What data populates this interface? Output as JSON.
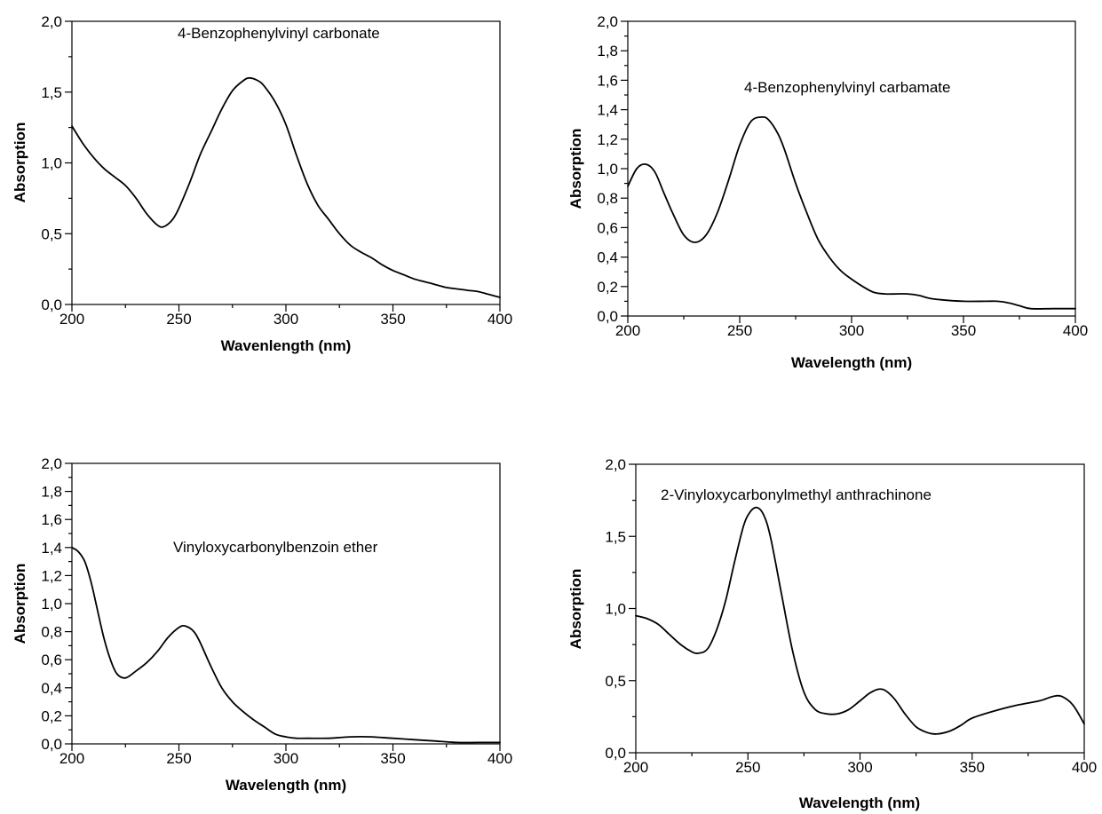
{
  "chart_data": [
    {
      "type": "line",
      "title": "",
      "annotation": "4-Benzophenylvinyl carbonate",
      "xlabel": "Wavenlength (nm)",
      "ylabel": "Absorption",
      "xlim": [
        200,
        400
      ],
      "ylim": [
        0,
        2
      ],
      "x_ticks": [
        "200",
        "250",
        "300",
        "350",
        "400"
      ],
      "y_ticks": [
        "0,0",
        "0,5",
        "1,0",
        "1,5",
        "2,0"
      ],
      "series": [
        {
          "x": [
            200,
            205,
            210,
            215,
            220,
            225,
            230,
            235,
            240,
            243,
            247,
            250,
            255,
            260,
            265,
            270,
            275,
            280,
            283,
            287,
            290,
            295,
            300,
            305,
            310,
            315,
            320,
            325,
            330,
            335,
            340,
            345,
            350,
            355,
            360,
            365,
            370,
            375,
            380,
            385,
            390,
            395,
            400
          ],
          "y": [
            1.26,
            1.14,
            1.04,
            0.96,
            0.9,
            0.84,
            0.75,
            0.64,
            0.56,
            0.55,
            0.6,
            0.68,
            0.86,
            1.06,
            1.22,
            1.38,
            1.51,
            1.58,
            1.6,
            1.58,
            1.54,
            1.43,
            1.27,
            1.05,
            0.85,
            0.7,
            0.6,
            0.5,
            0.42,
            0.37,
            0.33,
            0.28,
            0.24,
            0.21,
            0.18,
            0.16,
            0.14,
            0.12,
            0.11,
            0.1,
            0.09,
            0.07,
            0.05
          ]
        }
      ]
    },
    {
      "type": "line",
      "title": "",
      "annotation": "4-Benzophenylvinyl carbamate",
      "xlabel": "Wavelength (nm)",
      "ylabel": "Absorption",
      "xlim": [
        200,
        400
      ],
      "ylim": [
        0,
        2
      ],
      "x_ticks": [
        "200",
        "250",
        "300",
        "350",
        "400"
      ],
      "y_ticks": [
        "0,0",
        "0,2",
        "0,4",
        "0,6",
        "0,8",
        "1,0",
        "1,2",
        "1,4",
        "1,6",
        "1,8",
        "2,0"
      ],
      "series": [
        {
          "x": [
            200,
            204,
            208,
            212,
            216,
            220,
            225,
            230,
            235,
            240,
            245,
            250,
            255,
            260,
            263,
            267,
            270,
            275,
            280,
            285,
            290,
            295,
            300,
            305,
            310,
            315,
            320,
            325,
            330,
            335,
            340,
            350,
            360,
            365,
            370,
            375,
            380,
            390,
            400
          ],
          "y": [
            0.88,
            1.0,
            1.03,
            0.98,
            0.84,
            0.7,
            0.55,
            0.5,
            0.55,
            0.7,
            0.92,
            1.16,
            1.32,
            1.35,
            1.33,
            1.24,
            1.13,
            0.9,
            0.7,
            0.52,
            0.4,
            0.31,
            0.25,
            0.2,
            0.16,
            0.15,
            0.15,
            0.15,
            0.14,
            0.12,
            0.11,
            0.1,
            0.1,
            0.1,
            0.09,
            0.07,
            0.05,
            0.05,
            0.05
          ]
        }
      ]
    },
    {
      "type": "line",
      "title": "",
      "annotation": "Vinyloxycarbonylbenzoin ether",
      "xlabel": "Wavelength (nm)",
      "ylabel": "Absorption",
      "xlim": [
        200,
        400
      ],
      "ylim": [
        0,
        2
      ],
      "x_ticks": [
        "200",
        "250",
        "300",
        "350",
        "400"
      ],
      "y_ticks": [
        "0,0",
        "0,2",
        "0,4",
        "0,6",
        "0,8",
        "1,0",
        "1,2",
        "1,4",
        "1,6",
        "1,8",
        "2,0"
      ],
      "series": [
        {
          "x": [
            200,
            203,
            206,
            209,
            212,
            215,
            218,
            221,
            225,
            230,
            235,
            240,
            245,
            250,
            253,
            257,
            260,
            265,
            270,
            275,
            280,
            285,
            290,
            295,
            300,
            305,
            310,
            320,
            330,
            340,
            350,
            360,
            370,
            380,
            390,
            400
          ],
          "y": [
            1.4,
            1.37,
            1.3,
            1.15,
            0.95,
            0.75,
            0.6,
            0.5,
            0.47,
            0.52,
            0.58,
            0.66,
            0.76,
            0.83,
            0.84,
            0.8,
            0.72,
            0.55,
            0.4,
            0.3,
            0.23,
            0.17,
            0.12,
            0.07,
            0.05,
            0.04,
            0.04,
            0.04,
            0.05,
            0.05,
            0.04,
            0.03,
            0.02,
            0.01,
            0.01,
            0.01
          ]
        }
      ]
    },
    {
      "type": "line",
      "title": "",
      "annotation": "2-Vinyloxycarbonylmethyl anthrachinone",
      "xlabel": "Wavelength (nm)",
      "ylabel": "Absorption",
      "xlim": [
        200,
        400
      ],
      "ylim": [
        0,
        2
      ],
      "x_ticks": [
        "200",
        "250",
        "300",
        "350",
        "400"
      ],
      "y_ticks": [
        "0,0",
        "0,5",
        "1,0",
        "1,5",
        "2,0"
      ],
      "series": [
        {
          "x": [
            200,
            205,
            210,
            215,
            220,
            225,
            228,
            232,
            236,
            240,
            244,
            248,
            251,
            254,
            257,
            260,
            265,
            270,
            275,
            280,
            285,
            290,
            295,
            300,
            305,
            310,
            315,
            320,
            325,
            330,
            334,
            340,
            345,
            350,
            360,
            370,
            380,
            386,
            390,
            395,
            400
          ],
          "y": [
            0.95,
            0.93,
            0.89,
            0.82,
            0.75,
            0.7,
            0.69,
            0.72,
            0.85,
            1.05,
            1.32,
            1.57,
            1.67,
            1.7,
            1.65,
            1.5,
            1.1,
            0.7,
            0.42,
            0.3,
            0.27,
            0.27,
            0.3,
            0.36,
            0.42,
            0.44,
            0.38,
            0.27,
            0.18,
            0.14,
            0.13,
            0.15,
            0.19,
            0.24,
            0.29,
            0.33,
            0.36,
            0.39,
            0.39,
            0.33,
            0.2
          ]
        }
      ]
    }
  ]
}
